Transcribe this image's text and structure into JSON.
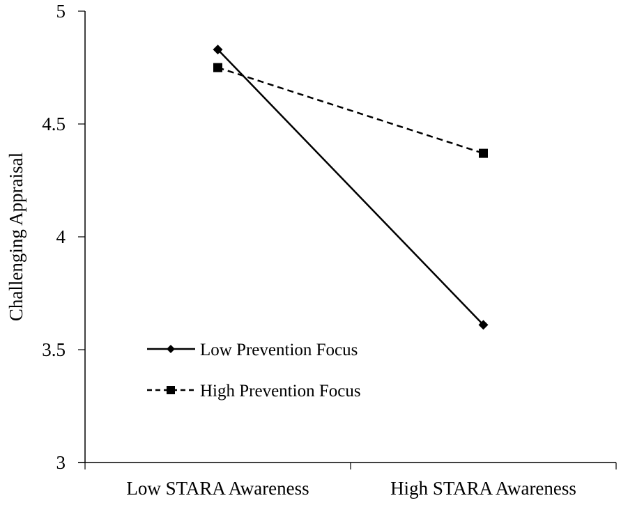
{
  "chart_data": {
    "type": "line",
    "title": "",
    "xlabel": "",
    "ylabel": "Challenging Appraisal",
    "categories": [
      "Low STARA Awareness",
      "High STARA Awareness"
    ],
    "ylim": [
      3,
      5
    ],
    "yticks": [
      3,
      3.5,
      4,
      4.5,
      5
    ],
    "ytick_labels": [
      "3",
      "3.5",
      "4",
      "4.5",
      "5"
    ],
    "grid": false,
    "legend_position": "lower-left",
    "series": [
      {
        "name": "Low Prevention Focus",
        "values": [
          4.83,
          3.61
        ],
        "line_style": "solid",
        "marker": "diamond",
        "color": "#000000"
      },
      {
        "name": "High Prevention Focus",
        "values": [
          4.75,
          4.37
        ],
        "line_style": "dashed",
        "marker": "square",
        "color": "#000000"
      }
    ]
  }
}
